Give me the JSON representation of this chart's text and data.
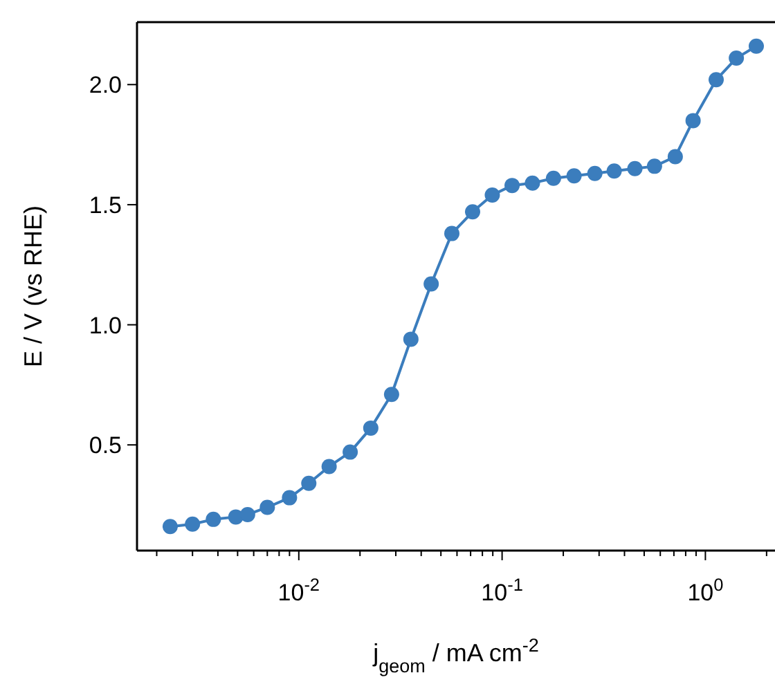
{
  "chart_data": {
    "type": "line",
    "xlabel": "j$_{geom}$ / mA cm$^{-2}$",
    "ylabel": "E / V (vs RHE)",
    "log": "x",
    "marker": "circle",
    "line_style": "solid",
    "grid": false,
    "xlim": [
      0.0016,
      2.2
    ],
    "ylim": [
      0.06,
      2.26
    ],
    "xticks": [
      {
        "value": 0.002,
        "label": null
      },
      {
        "value": 0.003,
        "label": null
      },
      {
        "value": 0.004,
        "label": null
      },
      {
        "value": 0.005,
        "label": null
      },
      {
        "value": 0.006,
        "label": null
      },
      {
        "value": 0.007,
        "label": null
      },
      {
        "value": 0.008,
        "label": null
      },
      {
        "value": 0.009,
        "label": null
      },
      {
        "value": 0.01,
        "label": "10$^{-2}$"
      },
      {
        "value": 0.02,
        "label": null
      },
      {
        "value": 0.03,
        "label": null
      },
      {
        "value": 0.04,
        "label": null
      },
      {
        "value": 0.05,
        "label": null
      },
      {
        "value": 0.06,
        "label": null
      },
      {
        "value": 0.07,
        "label": null
      },
      {
        "value": 0.08,
        "label": null
      },
      {
        "value": 0.09,
        "label": null
      },
      {
        "value": 0.1,
        "label": "10$^{-1}$"
      },
      {
        "value": 0.2,
        "label": null
      },
      {
        "value": 0.3,
        "label": null
      },
      {
        "value": 0.4,
        "label": null
      },
      {
        "value": 0.5,
        "label": null
      },
      {
        "value": 0.6,
        "label": null
      },
      {
        "value": 0.7,
        "label": null
      },
      {
        "value": 0.8,
        "label": null
      },
      {
        "value": 0.9,
        "label": null
      },
      {
        "value": 1,
        "label": "10$^{0}$"
      },
      {
        "value": 2,
        "label": null
      }
    ],
    "yticks": [
      0.5,
      {
        "value": 1,
        "label": "1.0"
      },
      1.5,
      {
        "value": 2,
        "label": "2.0"
      }
    ],
    "series": [
      {
        "color": "#3b7dbd",
        "x": [
          0.00233,
          0.003,
          0.0038,
          0.0049,
          0.0056,
          0.007,
          0.009,
          0.0112,
          0.0141,
          0.0179,
          0.0226,
          0.0286,
          0.0356,
          0.0448,
          0.0566,
          0.0716,
          0.0895,
          0.112,
          0.141,
          0.179,
          0.226,
          0.286,
          0.356,
          0.45,
          0.562,
          0.711,
          0.87,
          1.13,
          1.42,
          1.78
        ],
        "values": [
          0.16,
          0.17,
          0.19,
          0.2,
          0.21,
          0.24,
          0.28,
          0.34,
          0.41,
          0.47,
          0.57,
          0.71,
          0.94,
          1.17,
          1.38,
          1.47,
          1.54,
          1.58,
          1.59,
          1.61,
          1.62,
          1.63,
          1.64,
          1.65,
          1.66,
          1.7,
          1.85,
          2.02,
          2.11,
          2.16
        ]
      }
    ]
  }
}
